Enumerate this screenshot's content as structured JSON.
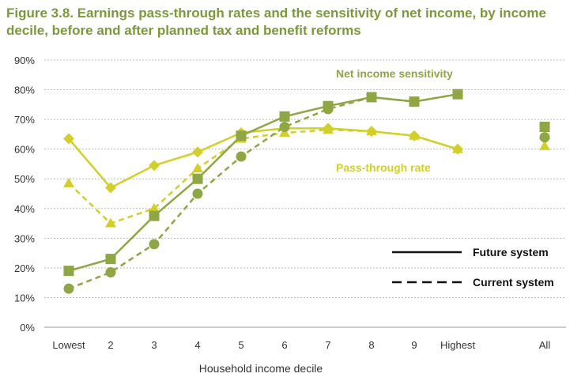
{
  "figure": {
    "title": "Figure 3.8. Earnings pass-through rates and the sensitivity of net income, by income decile, before and after planned tax and benefit reforms"
  },
  "colors": {
    "net_income": "#8ea644",
    "pass_through": "#d3cf2a",
    "title": "#7a9a3a",
    "grid": "#bbbbbb",
    "legend": "#111111"
  },
  "chart_data": {
    "type": "line",
    "categories": [
      "Lowest",
      "2",
      "3",
      "4",
      "5",
      "6",
      "7",
      "8",
      "9",
      "Highest"
    ],
    "extra_category": "All",
    "xlabel": "Household income decile",
    "ylabel": "",
    "ylim": [
      0,
      90
    ],
    "y_ticks": [
      "0%",
      "10%",
      "20%",
      "30%",
      "40%",
      "50%",
      "60%",
      "70%",
      "80%",
      "90%"
    ],
    "grid": "horizontal dashed",
    "annotations": {
      "net_income": "Net income sensitivity",
      "pass_through": "Pass-through rate"
    },
    "legend": {
      "position": "lower-right",
      "future": "Future system",
      "current": "Current system"
    },
    "series": [
      {
        "key": "net_future",
        "group": "net",
        "system": "future",
        "marker": "square",
        "values": [
          19,
          23,
          37.5,
          50,
          64.5,
          71,
          74.5,
          77.5,
          76,
          78.5
        ],
        "all": 67.5
      },
      {
        "key": "net_current",
        "group": "net",
        "system": "current",
        "marker": "circle",
        "values": [
          13,
          18.5,
          28,
          45,
          57.5,
          67.5,
          73.5,
          77.5,
          76,
          78.5
        ],
        "all": 64
      },
      {
        "key": "pass_future",
        "group": "pass",
        "system": "future",
        "marker": "diamond",
        "values": [
          63.5,
          47,
          54.5,
          59,
          65.5,
          67,
          67,
          66,
          64.5,
          60
        ],
        "all": 63.5
      },
      {
        "key": "pass_current",
        "group": "pass",
        "system": "current",
        "marker": "triangle",
        "values": [
          48.5,
          35,
          40,
          53.5,
          63.5,
          65.5,
          66.5,
          66,
          64.5,
          60
        ],
        "all": 61
      }
    ]
  }
}
